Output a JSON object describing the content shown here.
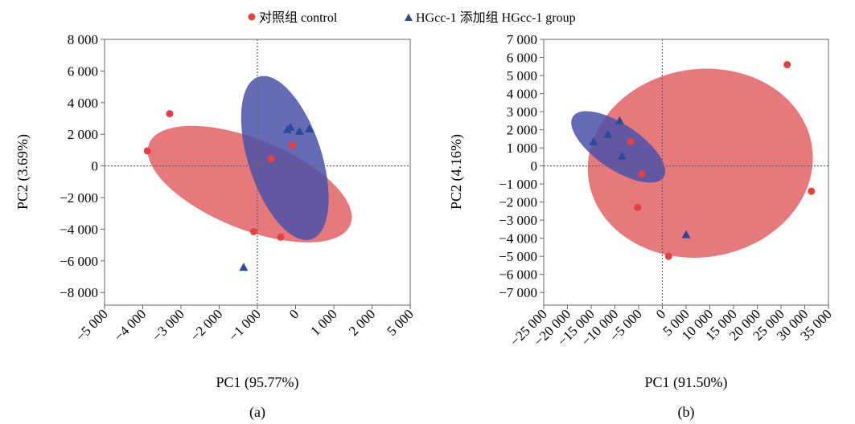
{
  "legend": {
    "control_label": "对照组 control",
    "treatment_label": "HGcc-1 添加组 HGcc-1 group",
    "control_color": "#e8403f",
    "treatment_color": "#2d4a9a"
  },
  "colors": {
    "control_ellipse": "#e15b5f",
    "treatment_ellipse": "#4a52a8"
  },
  "chart_data": [
    {
      "type": "scatter",
      "panel_label": "(a)",
      "xlabel": "PC1 (95.77%)",
      "ylabel": "PC2 (3.69%)",
      "xlim": [
        -5000,
        5000
      ],
      "ylim": [
        -8800,
        8000
      ],
      "xticks": [
        -5000,
        -4000,
        -3000,
        -2000,
        -1000,
        0,
        1000,
        2000,
        5000
      ],
      "xtick_labels": [
        "−5 000",
        "−4 000",
        "−3 000",
        "−2 000",
        "−1 000",
        "0",
        "1 000",
        "2 000",
        "5 000"
      ],
      "yticks": [
        8000,
        6000,
        4000,
        2000,
        0,
        -2000,
        -4000,
        -6000,
        -8000
      ],
      "ytick_labels": [
        "8 000",
        "6 000",
        "4 000",
        "2 000",
        "0",
        "−2 000",
        "−4 000",
        "−6 000",
        "−8 000"
      ],
      "series": [
        {
          "name": "对照组 control",
          "marker": "circle",
          "points": [
            [
              -3600,
              950
            ],
            [
              -2870,
              3300
            ],
            [
              450,
              450
            ],
            [
              1150,
              1300
            ],
            [
              -120,
              -4150
            ],
            [
              760,
              -4500
            ]
          ]
        },
        {
          "name": "HGcc-1 添加组 HGcc-1 group",
          "marker": "triangle",
          "points": [
            [
              980,
              2300
            ],
            [
              1080,
              2450
            ],
            [
              1380,
              2200
            ],
            [
              1700,
              2350
            ],
            [
              -450,
              -6400
            ]
          ]
        }
      ],
      "ellipses": [
        {
          "series": "对照组 control",
          "center": [
            -250,
            -1150
          ],
          "rx": 3550,
          "ry": 2850,
          "angle_deg": 22
        },
        {
          "series": "HGcc-1 添加组 HGcc-1 group",
          "center": [
            900,
            500
          ],
          "rx": 1200,
          "ry": 5400,
          "angle_deg": -18
        }
      ]
    },
    {
      "type": "scatter",
      "panel_label": "(b)",
      "xlabel": "PC1 (91.50%)",
      "ylabel": "PC2 (4.16%)",
      "xlim": [
        -25000,
        35000
      ],
      "ylim": [
        -7700,
        7000
      ],
      "xticks": [
        -25000,
        -20000,
        -15000,
        -10000,
        -5000,
        0,
        5000,
        10000,
        15000,
        20000,
        25000,
        30000,
        35000
      ],
      "xtick_labels": [
        "−25 000",
        "−20 000",
        "−15 000",
        "−10 000",
        "−5 000",
        "0",
        "5 000",
        "10 000",
        "15 000",
        "20 000",
        "25 000",
        "30 000",
        "35 000"
      ],
      "yticks": [
        7000,
        6000,
        5000,
        4000,
        3000,
        2000,
        1000,
        0,
        -1000,
        -2000,
        -3000,
        -4000,
        -5000,
        -6000,
        -7000
      ],
      "ytick_labels": [
        "7 000",
        "6 000",
        "5 000",
        "4 000",
        "3 000",
        "2 000",
        "1 000",
        "0",
        "−1 000",
        "−2 000",
        "−3 000",
        "−4 000",
        "−5 000",
        "−6 000",
        "−7 000"
      ],
      "series": [
        {
          "name": "对照组 control",
          "marker": "circle",
          "points": [
            [
              -6700,
              1350
            ],
            [
              -4300,
              -450
            ],
            [
              -5200,
              -2300
            ],
            [
              1300,
              -5000
            ],
            [
              26300,
              5600
            ],
            [
              31400,
              -1400
            ]
          ]
        },
        {
          "name": "HGcc-1 添加组 HGcc-1 group",
          "marker": "triangle",
          "points": [
            [
              -14500,
              1350
            ],
            [
              -11500,
              1750
            ],
            [
              -9000,
              2500
            ],
            [
              -8500,
              550
            ],
            [
              5000,
              -3800
            ]
          ]
        }
      ],
      "ellipses": [
        {
          "series": "对照组 control",
          "center": [
            8000,
            150
          ],
          "rx": 23800,
          "ry": 5200,
          "angle_deg": -9
        },
        {
          "series": "HGcc-1 添加组 HGcc-1 group",
          "center": [
            -9300,
            1050
          ],
          "rx": 11500,
          "ry": 1250,
          "angle_deg": 34
        }
      ]
    }
  ]
}
